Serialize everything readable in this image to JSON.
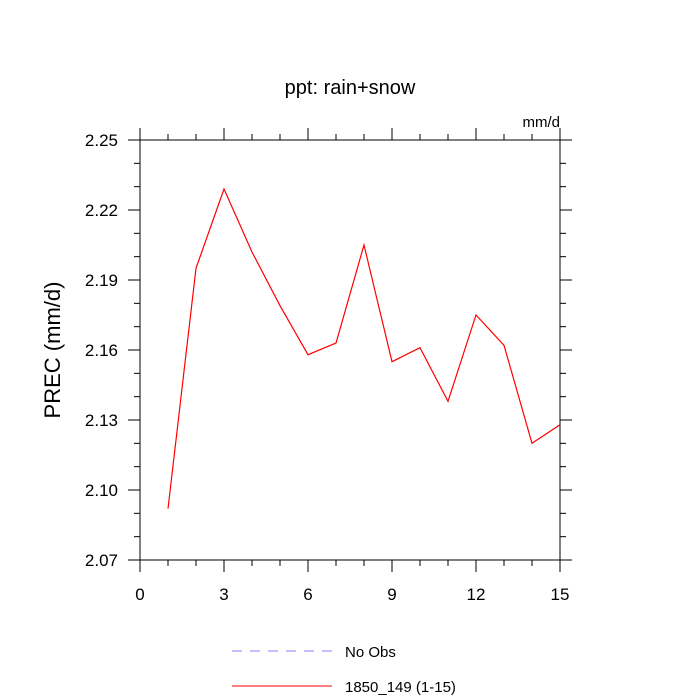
{
  "chart_data": {
    "type": "line",
    "title": "ppt: rain+snow",
    "units": "mm/d",
    "ylabel": "PREC  (mm/d)",
    "xlabel": "",
    "xlim": [
      0,
      15
    ],
    "ylim": [
      2.07,
      2.25
    ],
    "xticks": [
      0,
      3,
      6,
      9,
      12,
      15
    ],
    "xtick_labels": [
      "0",
      "3",
      "6",
      "9",
      "12",
      "15"
    ],
    "yticks": [
      2.07,
      2.1,
      2.13,
      2.16,
      2.19,
      2.22,
      2.25
    ],
    "ytick_labels": [
      "2.07",
      "2.10",
      "2.13",
      "2.16",
      "2.19",
      "2.22",
      "2.25"
    ],
    "grid": false,
    "legend_position": "bottom",
    "series": [
      {
        "name": "1850_149 (1-15)",
        "color": "#ff0000",
        "dash": "solid",
        "x": [
          1,
          2,
          3,
          4,
          5,
          6,
          7,
          8,
          9,
          10,
          11,
          12,
          13,
          14,
          15
        ],
        "y": [
          2.092,
          2.195,
          2.229,
          2.202,
          2.179,
          2.158,
          2.163,
          2.205,
          2.155,
          2.161,
          2.138,
          2.175,
          2.162,
          2.12,
          2.128
        ]
      }
    ],
    "legend": [
      {
        "label": "No Obs",
        "color": "#8080ff",
        "dash": "dashed"
      },
      {
        "label": "1850_149 (1-15)",
        "color": "#ff0000",
        "dash": "solid"
      }
    ]
  }
}
